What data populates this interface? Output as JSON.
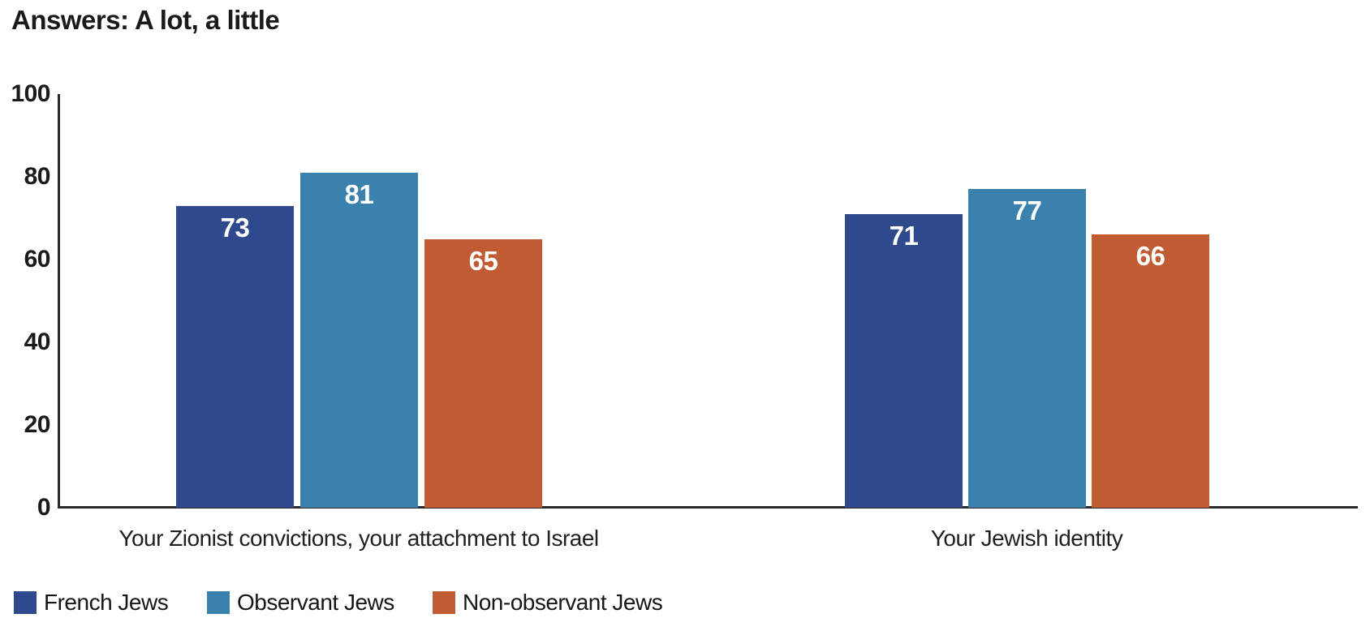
{
  "title": "Answers: A lot, a little",
  "chart_data": {
    "type": "bar",
    "title": "Answers: A lot, a little",
    "categories": [
      "Your Zionist convictions, your attachment to Israel",
      "Your Jewish identity"
    ],
    "series": [
      {
        "name": "French Jews",
        "color": "#2F4A8C",
        "values": [
          73,
          71
        ]
      },
      {
        "name": "Observant Jews",
        "color": "#3A81AD",
        "values": [
          81,
          77
        ]
      },
      {
        "name": "Non-observant Jews",
        "color": "#C05B33",
        "values": [
          65,
          66
        ]
      }
    ],
    "ylim": [
      0,
      100
    ],
    "yticks": [
      0,
      20,
      40,
      60,
      80,
      100
    ],
    "grid": false,
    "legend_position": "bottom-left",
    "value_label_style": "white bold, inside top of bar"
  },
  "colors": {
    "axis": "#2A2A2C",
    "text": "#1A1A1A",
    "value_label": "#FFFFFF",
    "background": "#FFFFFF"
  }
}
